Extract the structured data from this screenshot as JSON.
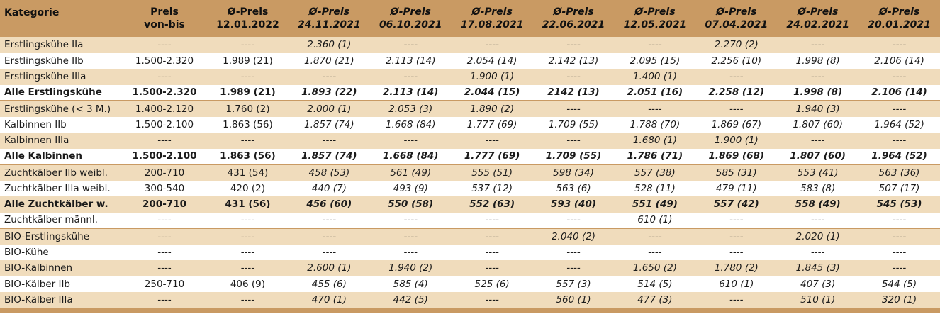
{
  "header": {
    "kategorie": "Kategorie",
    "cols": [
      {
        "l1": "Preis",
        "l2": "von-bis",
        "italic": false
      },
      {
        "l1": "Ø-Preis",
        "l2": "12.01.2022",
        "italic": false
      },
      {
        "l1": "Ø-Preis",
        "l2": "24.11.2021",
        "italic": true
      },
      {
        "l1": "Ø-Preis",
        "l2": "06.10.2021",
        "italic": true
      },
      {
        "l1": "Ø-Preis",
        "l2": "17.08.2021",
        "italic": true
      },
      {
        "l1": "Ø-Preis",
        "l2": "22.06.2021",
        "italic": true
      },
      {
        "l1": "Ø-Preis",
        "l2": "12.05.2021",
        "italic": true
      },
      {
        "l1": "Ø-Preis",
        "l2": "07.04.2021",
        "italic": true
      },
      {
        "l1": "Ø-Preis",
        "l2": "24.02.2021",
        "italic": true
      },
      {
        "l1": "Ø-Preis",
        "l2": "20.01.2021",
        "italic": true
      }
    ]
  },
  "rows": [
    {
      "style": "tan",
      "bold": false,
      "sep": false,
      "cells": [
        "Erstlingskühe IIa",
        "----",
        "----",
        "2.360 (1)",
        "----",
        "----",
        "----",
        "----",
        "2.270 (2)",
        "----",
        "----"
      ]
    },
    {
      "style": "white",
      "bold": false,
      "sep": false,
      "cells": [
        "Erstlingskühe IIb",
        "1.500-2.320",
        "1.989 (21)",
        "1.870 (21)",
        "2.113 (14)",
        "2.054 (14)",
        "2.142 (13)",
        "2.095 (15)",
        "2.256 (10)",
        "1.998 (8)",
        "2.106 (14)"
      ]
    },
    {
      "style": "tan",
      "bold": false,
      "sep": false,
      "cells": [
        "Erstlingskühe IIIa",
        "----",
        "----",
        "----",
        "----",
        "1.900 (1)",
        "----",
        "1.400 (1)",
        "----",
        "----",
        "----"
      ]
    },
    {
      "style": "white",
      "bold": true,
      "sep": true,
      "cells": [
        "Alle Erstlingskühe",
        "1.500-2.320",
        "1.989 (21)",
        "1.893 (22)",
        "2.113 (14)",
        "2.044 (15)",
        "2142 (13)",
        "2.051 (16)",
        "2.258 (12)",
        "1.998 (8)",
        "2.106 (14)"
      ]
    },
    {
      "style": "tan",
      "bold": false,
      "sep": false,
      "cells": [
        "Erstlingskühe (< 3 M.)",
        "1.400-2.120",
        "1.760 (2)",
        "2.000 (1)",
        "2.053 (3)",
        "1.890 (2)",
        "----",
        "----",
        "----",
        "1.940 (3)",
        "----"
      ]
    },
    {
      "style": "white",
      "bold": false,
      "sep": false,
      "cells": [
        "Kalbinnen IIb",
        "1.500-2.100",
        "1.863 (56)",
        "1.857 (74)",
        "1.668 (84)",
        "1.777 (69)",
        "1.709 (55)",
        "1.788 (70)",
        "1.869 (67)",
        "1.807 (60)",
        "1.964 (52)"
      ]
    },
    {
      "style": "tan",
      "bold": false,
      "sep": false,
      "cells": [
        "Kalbinnen IIIa",
        "----",
        "----",
        "----",
        "----",
        "----",
        "----",
        "1.680 (1)",
        "1.900 (1)",
        "----",
        "----"
      ]
    },
    {
      "style": "white",
      "bold": true,
      "sep": true,
      "cells": [
        "Alle Kalbinnen",
        "1.500-2.100",
        "1.863 (56)",
        "1.857 (74)",
        "1.668 (84)",
        "1.777 (69)",
        "1.709 (55)",
        "1.786 (71)",
        "1.869 (68)",
        "1.807 (60)",
        "1.964 (52)"
      ]
    },
    {
      "style": "tan",
      "bold": false,
      "sep": false,
      "cells": [
        "Zuchtkälber IIb weibl.",
        "200-710",
        "431 (54)",
        "458 (53)",
        "561 (49)",
        "555 (51)",
        "598 (34)",
        "557 (38)",
        "585 (31)",
        "553 (41)",
        "563 (36)"
      ]
    },
    {
      "style": "white",
      "bold": false,
      "sep": false,
      "cells": [
        "Zuchtkälber IIIa weibl.",
        "300-540",
        "420 (2)",
        "440 (7)",
        "493 (9)",
        "537 (12)",
        "563 (6)",
        "528 (11)",
        "479 (11)",
        "583 (8)",
        "507 (17)"
      ]
    },
    {
      "style": "tan",
      "bold": true,
      "sep": false,
      "cells": [
        "Alle Zuchtkälber w.",
        "200-710",
        "431 (56)",
        "456 (60)",
        "550 (58)",
        "552 (63)",
        "593 (40)",
        "551 (49)",
        "557 (42)",
        "558 (49)",
        "545 (53)"
      ]
    },
    {
      "style": "white",
      "bold": false,
      "sep": true,
      "cells": [
        "Zuchtkälber männl.",
        "----",
        "----",
        "----",
        "----",
        "----",
        "----",
        "610 (1)",
        "----",
        "----",
        "----"
      ]
    },
    {
      "style": "tan",
      "bold": false,
      "sep": false,
      "cells": [
        "BIO-Erstlingskühe",
        "----",
        "----",
        "----",
        "----",
        "----",
        "2.040 (2)",
        "----",
        "----",
        "2.020 (1)",
        "----"
      ]
    },
    {
      "style": "white",
      "bold": false,
      "sep": false,
      "cells": [
        "BIO-Kühe",
        "----",
        "----",
        "----",
        "----",
        "----",
        "----",
        "----",
        "----",
        "----",
        "----"
      ]
    },
    {
      "style": "tan",
      "bold": false,
      "sep": false,
      "cells": [
        "BIO-Kalbinnen",
        "----",
        "----",
        "2.600 (1)",
        "1.940 (2)",
        "----",
        "----",
        "1.650 (2)",
        "1.780 (2)",
        "1.845 (3)",
        "----"
      ]
    },
    {
      "style": "white",
      "bold": false,
      "sep": false,
      "cells": [
        "BIO-Kälber IIb",
        "250-710",
        "406 (9)",
        "455 (6)",
        "585 (4)",
        "525 (6)",
        "557 (3)",
        "514 (5)",
        "610 (1)",
        "407 (3)",
        "544 (5)"
      ]
    },
    {
      "style": "tan",
      "bold": false,
      "sep": false,
      "cells": [
        "BIO-Kälber IIIa",
        "----",
        "----",
        "470 (1)",
        "442 (5)",
        "----",
        "560 (1)",
        "477 (3)",
        "----",
        "510 (1)",
        "320 (1)"
      ]
    }
  ]
}
